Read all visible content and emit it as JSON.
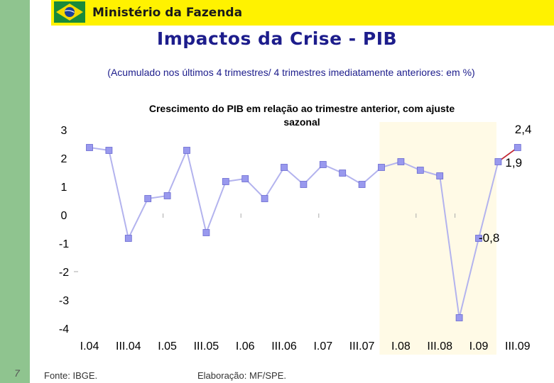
{
  "header": {
    "ministry": "Ministério da Fazenda",
    "title": "Impactos da Crise - PIB",
    "subtitle": "(Acumulado nos últimos 4 trimestres/ 4 trimestres imediatamente anteriores: em %)"
  },
  "footer": {
    "slide_number": "7",
    "source": "Fonte: IBGE.",
    "elaboration": "Elaboração: MF/SPE."
  },
  "colors": {
    "header_bar": "#fff200",
    "left_band": "#8fc48f",
    "title": "#1d1d8c",
    "series_line": "#b3b3ee",
    "marker": "#9999ee",
    "highlight": "#fffae6",
    "red_segment": "#cc2222"
  },
  "chart_data": {
    "type": "line",
    "title_line1": "Crescimento do PIB em relação ao trimestre anterior, com ajuste",
    "title_line2": "sazonal",
    "ylim": [
      -4,
      3
    ],
    "yticks": [
      "3",
      "2",
      "1",
      "0",
      "-1",
      "-2",
      "-3",
      "-4"
    ],
    "xticks": [
      "I.04",
      "III.04",
      "I.05",
      "III.05",
      "I.06",
      "III.06",
      "I.07",
      "III.07",
      "I.08",
      "III.08",
      "I.09",
      "III.09"
    ],
    "values": [
      2.4,
      2.3,
      -0.8,
      0.6,
      0.7,
      2.3,
      -0.6,
      1.2,
      1.3,
      0.6,
      1.7,
      1.1,
      1.8,
      1.5,
      1.1,
      1.7,
      1.9,
      1.6,
      1.4,
      -3.6,
      -0.8,
      1.9,
      2.4
    ],
    "highlight_from_index": 16,
    "annotations": [
      {
        "label": "2,4",
        "index": 22
      },
      {
        "label": "1,9",
        "index": 21
      },
      {
        "label": "-0,8",
        "index": 20
      }
    ]
  }
}
